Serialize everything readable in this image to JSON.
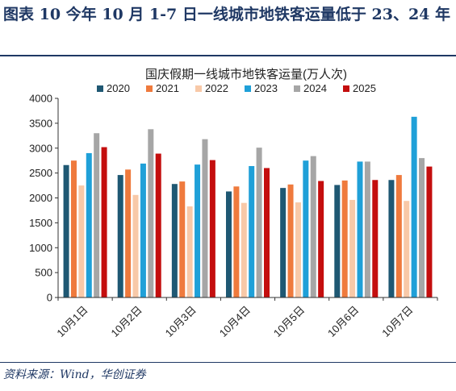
{
  "figure_title": "图表 10 今年 10 月 1-7 日一线城市地铁客运量低于 23、24 年",
  "source_note": "资料来源：Wind，华创证券",
  "colors": {
    "title": "#1f3864",
    "series": [
      "#1f5873",
      "#ef7a3d",
      "#f8c9a8",
      "#1fa0d8",
      "#a6a6a6",
      "#c40e0e"
    ]
  },
  "chart_data": {
    "type": "bar",
    "title": "国庆假期一线城市地铁客运量(万人次)",
    "categories": [
      "10月1日",
      "10月2日",
      "10月3日",
      "10月4日",
      "10月5日",
      "10月6日",
      "10月7日"
    ],
    "series": [
      {
        "name": "2020",
        "values": [
          2660,
          2460,
          2280,
          2130,
          2200,
          2260,
          2360
        ]
      },
      {
        "name": "2021",
        "values": [
          2750,
          2570,
          2330,
          2230,
          2270,
          2350,
          2460
        ]
      },
      {
        "name": "2022",
        "values": [
          2250,
          2060,
          1830,
          1900,
          1910,
          1960,
          1940
        ]
      },
      {
        "name": "2023",
        "values": [
          2900,
          2690,
          2670,
          2640,
          2750,
          2730,
          3630
        ]
      },
      {
        "name": "2024",
        "values": [
          3300,
          3380,
          3180,
          3010,
          2840,
          2730,
          2800
        ]
      },
      {
        "name": "2025",
        "values": [
          3020,
          2890,
          2760,
          2600,
          2340,
          2360,
          2630
        ]
      }
    ],
    "ylim": [
      0,
      4000
    ],
    "yticks": [
      "0",
      "500",
      "1000",
      "1500",
      "2000",
      "2500",
      "3000",
      "3500",
      "4000"
    ],
    "grid": false,
    "legend_position": "top"
  }
}
